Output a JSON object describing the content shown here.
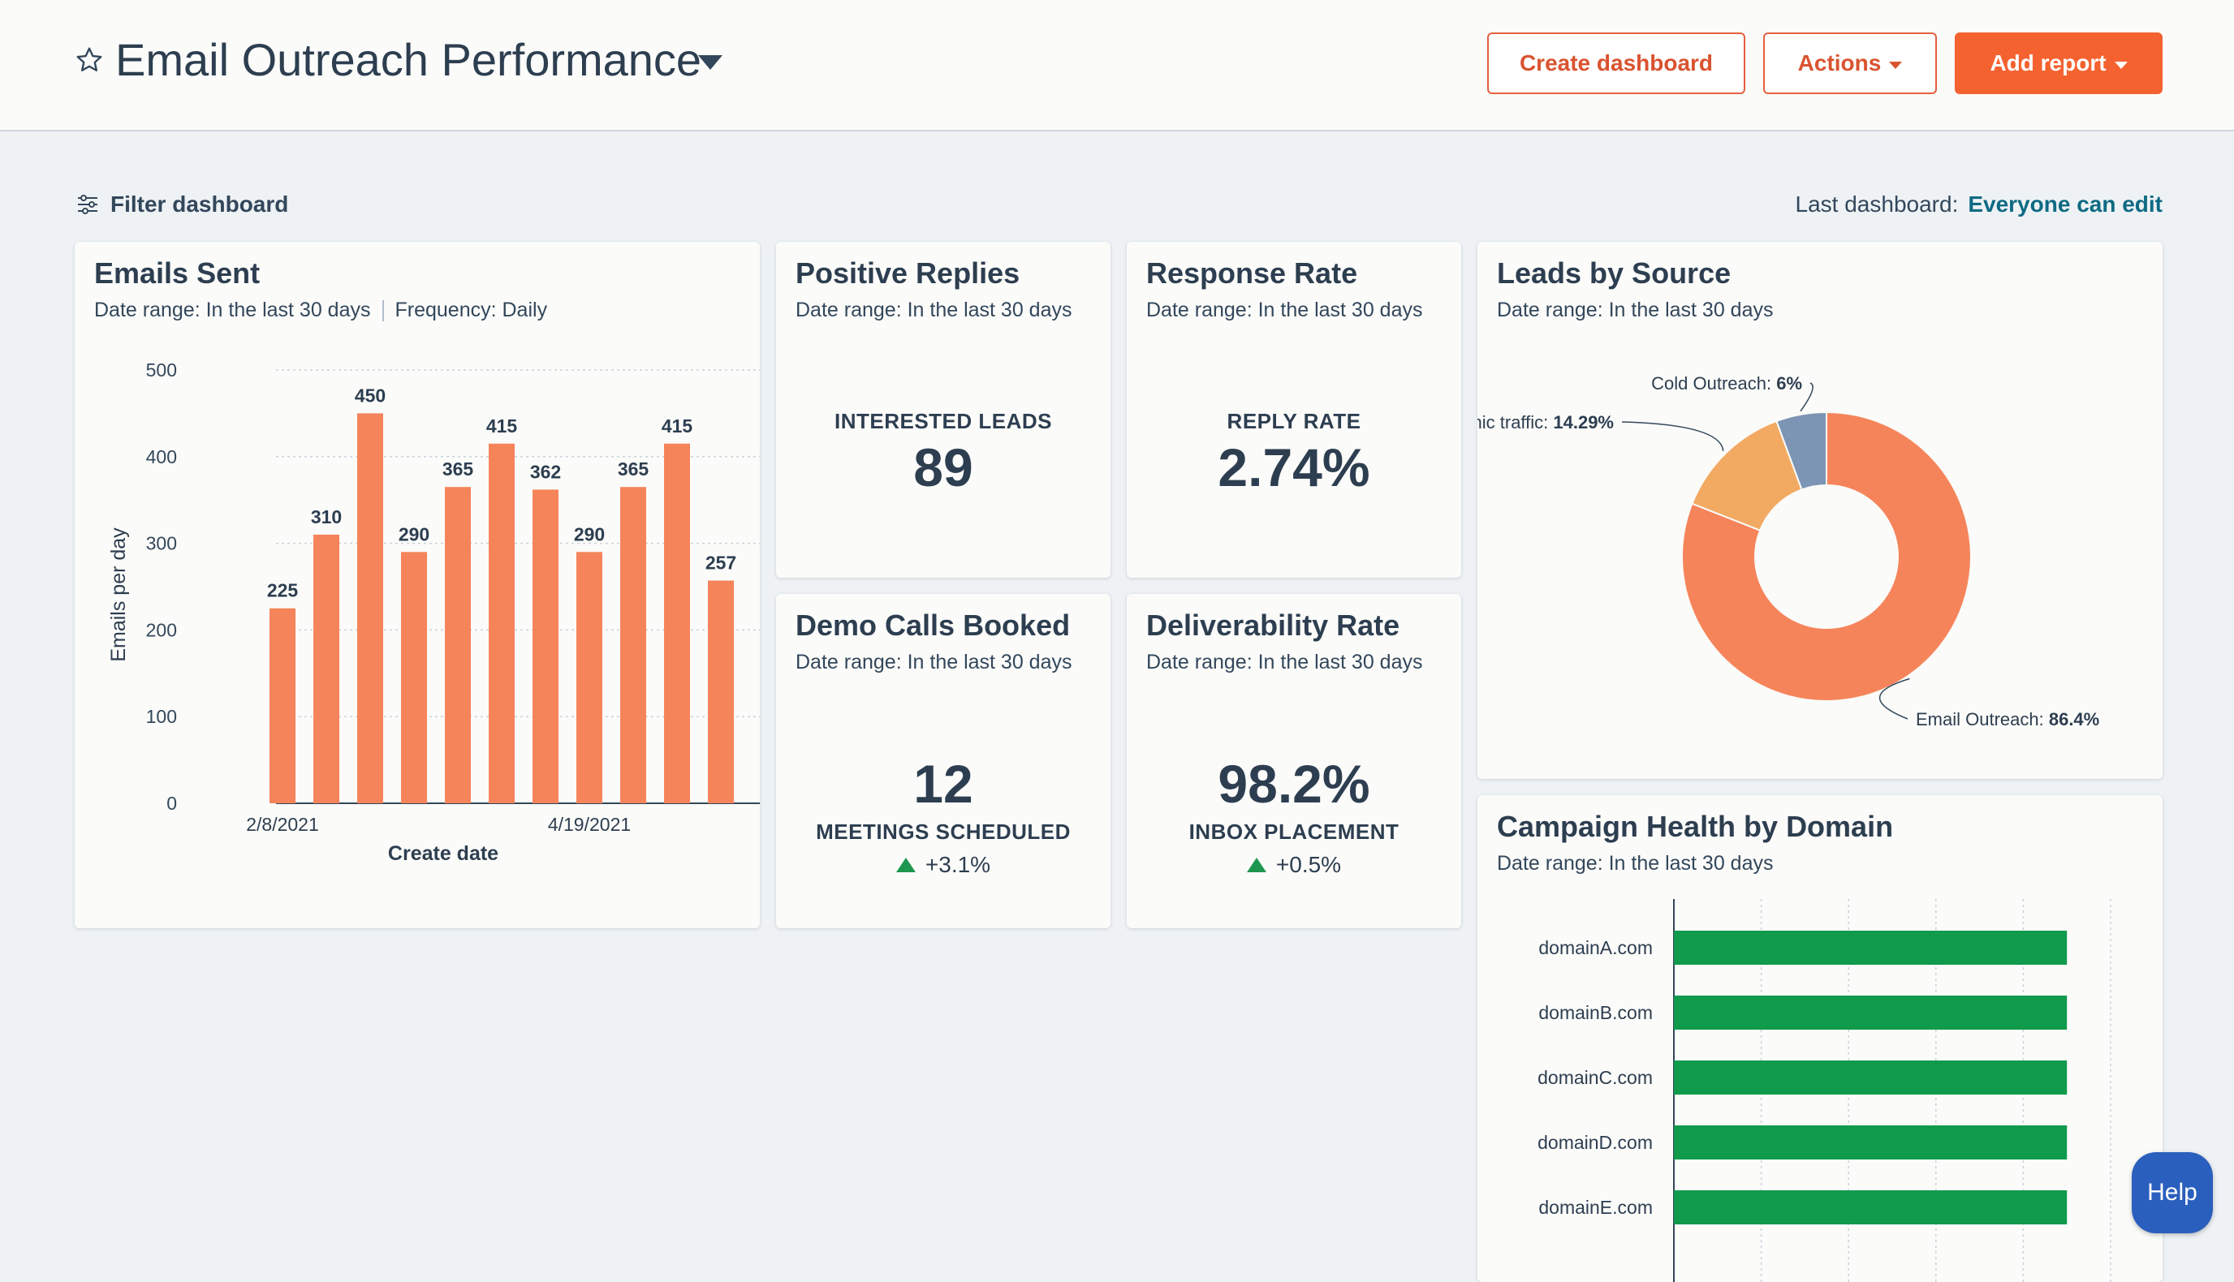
{
  "header": {
    "title": "Email Outreach Performance",
    "buttons": {
      "create_dashboard": "Create dashboard",
      "actions": "Actions",
      "add_report": "Add report"
    },
    "icons": [
      "star-icon",
      "chevron-down-icon"
    ]
  },
  "toolbar": {
    "filter_label": "Filter dashboard",
    "last_dashboard_label": "Last dashboard:",
    "last_dashboard_value": "Everyone can edit"
  },
  "cards": {
    "emails_sent": {
      "title": "Emails Sent",
      "date_range": "Date range: In the last 30 days",
      "frequency": "Frequency: Daily"
    },
    "positive_replies": {
      "title": "Positive Replies",
      "date_range": "Date range: In the last 30 days",
      "label": "INTERESTED LEADS",
      "value": "89"
    },
    "response_rate": {
      "title": "Response Rate",
      "date_range": "Date range: In the last 30 days",
      "label": "REPLY RATE",
      "value": "2.74%"
    },
    "demo_calls": {
      "title": "Demo Calls Booked",
      "date_range": "Date range: In the last 30 days",
      "value": "12",
      "label": "MEETINGS SCHEDULED",
      "delta": "+3.1%"
    },
    "deliverability": {
      "title": "Deliverability Rate",
      "date_range": "Date range: In the last 30 days",
      "value": "98.2%",
      "label": "INBOX PLACEMENT",
      "delta": "+0.5%"
    },
    "leads_by_source": {
      "title": "Leads by Source",
      "date_range": "Date range: In the last 30 days"
    },
    "campaign_health": {
      "title": "Campaign Health by Domain",
      "date_range": "Date range: In the last 30 days"
    }
  },
  "help_label": "Help",
  "colors": {
    "accent": "#f4622f",
    "bar": "#f6845a",
    "donut_main": "#f6845a",
    "donut_organic": "#f2aa62",
    "donut_cold": "#7d95b4",
    "domain_bar": "#0f9a4c",
    "up": "#1f9650"
  },
  "chart_data": [
    {
      "type": "bar",
      "categories": [
        "2/8/2021",
        "",
        "",
        "",
        "",
        "",
        "",
        "4/19/2021",
        "",
        "",
        ""
      ],
      "values": [
        225,
        310,
        450,
        290,
        365,
        415,
        362,
        290,
        365,
        415,
        257
      ],
      "xlabel": "Create date",
      "ylabel": "Emails per day",
      "ylim": [
        0,
        500
      ],
      "yticks": [
        0,
        100,
        200,
        300,
        400,
        500
      ],
      "grid": true
    },
    {
      "type": "pie",
      "labels": [
        "Email Outreach",
        "Organic traffic",
        "Cold Outreach"
      ],
      "values": [
        86.4,
        14.29,
        6
      ],
      "value_labels": [
        "86.4%",
        "14.29%",
        "6%"
      ],
      "donut": true
    },
    {
      "type": "bar",
      "orientation": "horizontal",
      "categories": [
        "domainA.com",
        "domainB.com",
        "domainC.com",
        "domainD.com",
        "domainE.com"
      ],
      "values": [
        90,
        90,
        90,
        90,
        90
      ],
      "xlim": [
        0,
        100
      ],
      "grid": true
    }
  ]
}
